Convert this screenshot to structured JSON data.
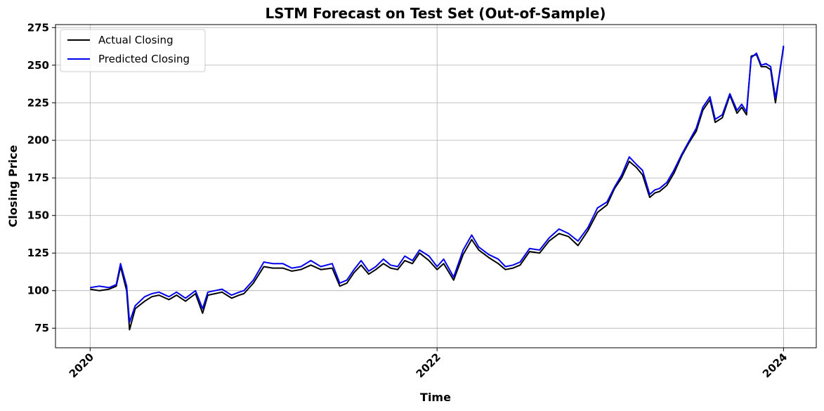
{
  "chart_data": {
    "type": "line",
    "title": "LSTM Forecast on Test Set (Out-of-Sample)",
    "xlabel": "Time",
    "ylabel": "Closing Price",
    "x_ticks": [
      "2020",
      "2022",
      "2024"
    ],
    "x_tick_values": [
      "2020-01-01",
      "2022-01-01",
      "2024-01-01"
    ],
    "xlim": [
      "2019-10-20",
      "2024-03-10"
    ],
    "y_ticks": [
      75,
      100,
      125,
      150,
      175,
      200,
      225,
      250,
      275
    ],
    "ylim": [
      62,
      277
    ],
    "grid": true,
    "legend_position": "top-left",
    "colors": {
      "actual": "#000000",
      "predicted": "#0000ee",
      "grid": "#b0b0b0"
    },
    "series": [
      {
        "name": "Actual Closing",
        "key": "actual",
        "x": [
          "2020-01-01",
          "2020-01-20",
          "2020-02-10",
          "2020-02-25",
          "2020-03-05",
          "2020-03-18",
          "2020-03-24",
          "2020-04-05",
          "2020-04-25",
          "2020-05-10",
          "2020-05-25",
          "2020-06-15",
          "2020-07-01",
          "2020-07-20",
          "2020-08-10",
          "2020-08-25",
          "2020-09-05",
          "2020-09-20",
          "2020-10-05",
          "2020-10-25",
          "2020-11-10",
          "2020-11-20",
          "2020-12-10",
          "2021-01-01",
          "2021-01-20",
          "2021-02-10",
          "2021-03-01",
          "2021-03-20",
          "2021-04-10",
          "2021-05-01",
          "2021-05-25",
          "2021-06-10",
          "2021-06-25",
          "2021-07-10",
          "2021-07-25",
          "2021-08-10",
          "2021-08-25",
          "2021-09-10",
          "2021-09-25",
          "2021-10-10",
          "2021-10-25",
          "2021-11-10",
          "2021-11-25",
          "2021-12-15",
          "2022-01-01",
          "2022-01-15",
          "2022-02-05",
          "2022-02-25",
          "2022-03-15",
          "2022-03-30",
          "2022-04-20",
          "2022-05-10",
          "2022-05-25",
          "2022-06-10",
          "2022-06-25",
          "2022-07-15",
          "2022-08-05",
          "2022-08-25",
          "2022-09-15",
          "2022-10-05",
          "2022-10-25",
          "2022-11-15",
          "2022-12-05",
          "2022-12-25",
          "2023-01-10",
          "2023-01-25",
          "2023-02-10",
          "2023-02-25",
          "2023-03-10",
          "2023-03-25",
          "2023-04-05",
          "2023-04-15",
          "2023-04-30",
          "2023-05-15",
          "2023-06-01",
          "2023-06-15",
          "2023-07-01",
          "2023-07-15",
          "2023-07-30",
          "2023-08-10",
          "2023-08-25",
          "2023-09-10",
          "2023-09-25",
          "2023-10-05",
          "2023-10-15",
          "2023-10-25",
          "2023-11-05",
          "2023-11-15",
          "2023-11-25",
          "2023-12-05",
          "2023-12-15",
          "2023-12-25",
          "2024-01-01"
        ],
        "values": [
          101,
          100,
          101,
          103,
          116,
          100,
          74,
          88,
          93,
          96,
          97,
          94,
          97,
          93,
          98,
          85,
          97,
          98,
          99,
          95,
          97,
          98,
          105,
          116,
          115,
          115,
          113,
          114,
          117,
          114,
          115,
          103,
          105,
          112,
          117,
          111,
          114,
          118,
          115,
          114,
          120,
          118,
          125,
          120,
          114,
          118,
          107,
          124,
          134,
          127,
          122,
          118,
          114,
          115,
          117,
          126,
          125,
          133,
          138,
          136,
          130,
          140,
          152,
          157,
          168,
          175,
          186,
          182,
          177,
          162,
          165,
          166,
          170,
          178,
          190,
          198,
          206,
          220,
          227,
          212,
          215,
          230,
          218,
          222,
          217,
          256,
          257,
          249,
          249,
          247,
          225,
          248,
          262
        ]
      },
      {
        "name": "Predicted Closing",
        "key": "predicted",
        "x": [
          "2020-01-01",
          "2020-01-20",
          "2020-02-10",
          "2020-02-25",
          "2020-03-05",
          "2020-03-18",
          "2020-03-24",
          "2020-04-05",
          "2020-04-25",
          "2020-05-10",
          "2020-05-25",
          "2020-06-15",
          "2020-07-01",
          "2020-07-20",
          "2020-08-10",
          "2020-08-25",
          "2020-09-05",
          "2020-09-20",
          "2020-10-05",
          "2020-10-25",
          "2020-11-10",
          "2020-11-20",
          "2020-12-10",
          "2021-01-01",
          "2021-01-20",
          "2021-02-10",
          "2021-03-01",
          "2021-03-20",
          "2021-04-10",
          "2021-05-01",
          "2021-05-25",
          "2021-06-10",
          "2021-06-25",
          "2021-07-10",
          "2021-07-25",
          "2021-08-10",
          "2021-08-25",
          "2021-09-10",
          "2021-09-25",
          "2021-10-10",
          "2021-10-25",
          "2021-11-10",
          "2021-11-25",
          "2021-12-15",
          "2022-01-01",
          "2022-01-15",
          "2022-02-05",
          "2022-02-25",
          "2022-03-15",
          "2022-03-30",
          "2022-04-20",
          "2022-05-10",
          "2022-05-25",
          "2022-06-10",
          "2022-06-25",
          "2022-07-15",
          "2022-08-05",
          "2022-08-25",
          "2022-09-15",
          "2022-10-05",
          "2022-10-25",
          "2022-11-15",
          "2022-12-05",
          "2022-12-25",
          "2023-01-10",
          "2023-01-25",
          "2023-02-10",
          "2023-02-25",
          "2023-03-10",
          "2023-03-25",
          "2023-04-05",
          "2023-04-15",
          "2023-04-30",
          "2023-05-15",
          "2023-06-01",
          "2023-06-15",
          "2023-07-01",
          "2023-07-15",
          "2023-07-30",
          "2023-08-10",
          "2023-08-25",
          "2023-09-10",
          "2023-09-25",
          "2023-10-05",
          "2023-10-15",
          "2023-10-25",
          "2023-11-05",
          "2023-11-15",
          "2023-11-25",
          "2023-12-05",
          "2023-12-15",
          "2023-12-25",
          "2024-01-01"
        ],
        "values": [
          102,
          103,
          102,
          104,
          118,
          103,
          79,
          90,
          96,
          98,
          99,
          96,
          99,
          95,
          100,
          88,
          99,
          100,
          101,
          97,
          99,
          100,
          107,
          119,
          118,
          118,
          115,
          116,
          120,
          116,
          118,
          105,
          107,
          114,
          120,
          113,
          116,
          121,
          117,
          116,
          123,
          120,
          127,
          123,
          116,
          121,
          109,
          127,
          137,
          129,
          124,
          121,
          116,
          117,
          119,
          128,
          127,
          135,
          141,
          138,
          133,
          142,
          155,
          159,
          169,
          177,
          189,
          184,
          180,
          164,
          167,
          168,
          172,
          180,
          191,
          199,
          208,
          222,
          229,
          214,
          217,
          231,
          220,
          224,
          219,
          255,
          258,
          250,
          251,
          249,
          228,
          247,
          263
        ]
      }
    ]
  }
}
